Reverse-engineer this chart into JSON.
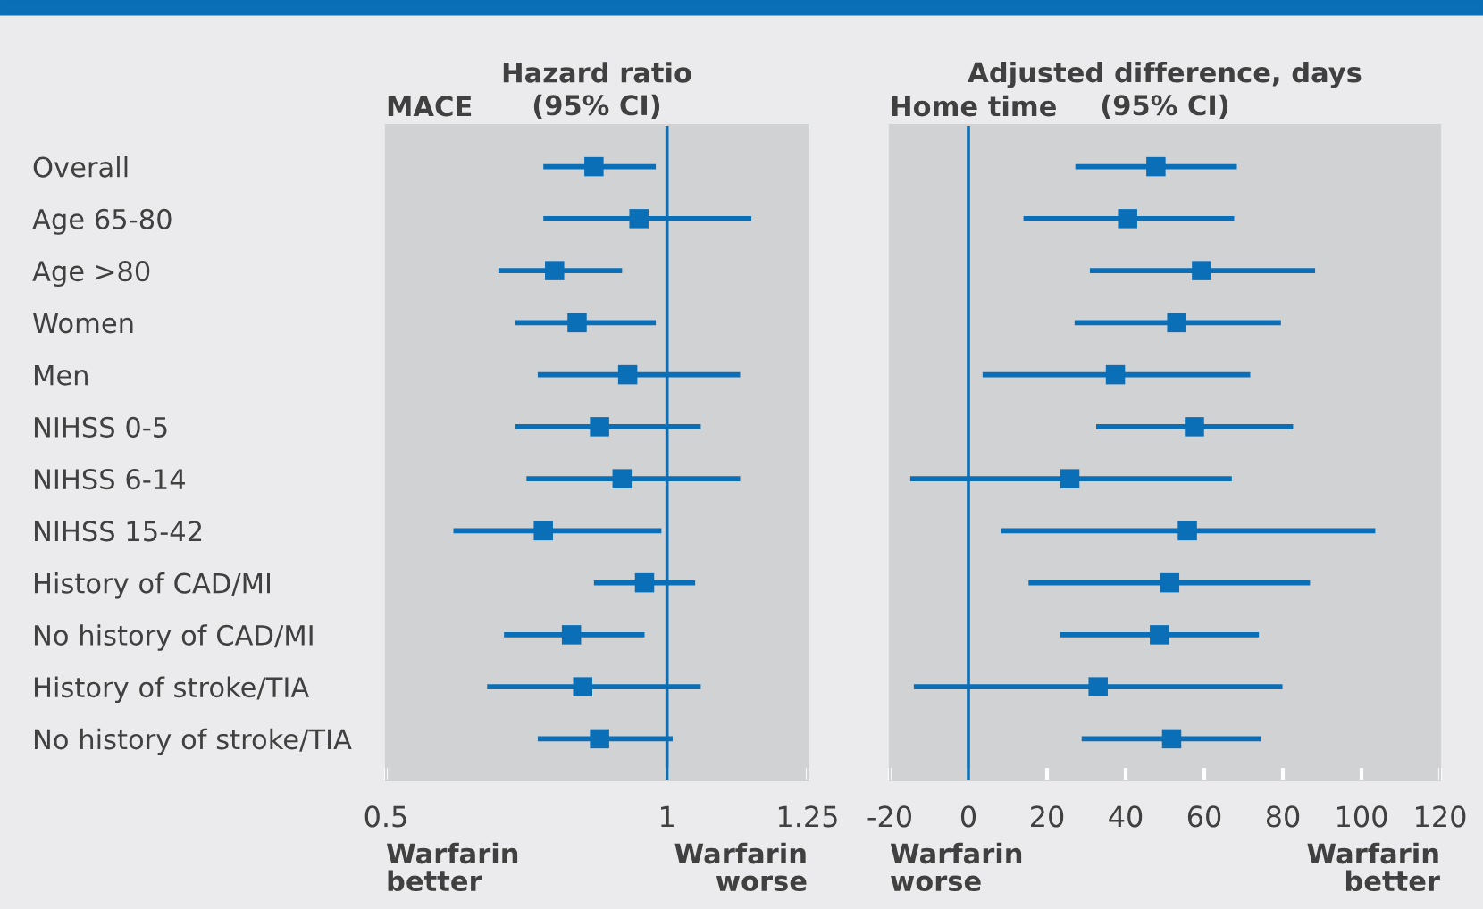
{
  "chart_data": [
    {
      "type": "scatter",
      "orientation": "horizontal",
      "title": "Hazard ratio\n(95% CI)",
      "annotations": [
        "MACE",
        "Warfarin\nbetter",
        "Warfarin\nworse"
      ],
      "categories": [
        "Overall",
        "Age 65-80",
        "Age >80",
        "Women",
        "Men",
        "NIHSS 0-5",
        "NIHSS 6-14",
        "NIHSS 15-42",
        "History of CAD/MI",
        "No history of CAD/MI",
        "History of stroke/TIA",
        "No history of stroke/TIA"
      ],
      "series": [
        {
          "color": "#0a6fb7",
          "values": [
            0.87,
            0.95,
            0.8,
            0.84,
            0.93,
            0.88,
            0.92,
            0.78,
            0.96,
            0.83,
            0.85,
            0.88
          ],
          "errors": [
            [
              0.78,
              0.98
            ],
            [
              0.78,
              1.15
            ],
            [
              0.7,
              0.92
            ],
            [
              0.73,
              0.98
            ],
            [
              0.77,
              1.13
            ],
            [
              0.73,
              1.06
            ],
            [
              0.75,
              1.13
            ],
            [
              0.62,
              0.99
            ],
            [
              0.87,
              1.05
            ],
            [
              0.71,
              0.96
            ],
            [
              0.68,
              1.06
            ],
            [
              0.77,
              1.01
            ]
          ]
        }
      ],
      "xlim": [
        0.5,
        1.25
      ],
      "xticks": [
        0.5,
        1,
        1.25
      ],
      "ref_lines": [
        {
          "axis": "x",
          "value": 1,
          "color": "#0a6fb7"
        }
      ],
      "marker": "square",
      "grid": false,
      "legend": false
    },
    {
      "type": "scatter",
      "orientation": "horizontal",
      "title": "Adjusted difference, days\n(95% CI)",
      "annotations": [
        "Home time",
        "Warfarin\nworse",
        "Warfarin\nbetter"
      ],
      "categories": [
        null,
        null,
        null,
        null,
        null,
        null,
        null,
        null,
        null,
        null,
        null,
        null
      ],
      "series": [
        {
          "color": "#0a6fb7",
          "values": [
            47.7,
            40.5,
            59.3,
            53.0,
            37.4,
            57.5,
            25.8,
            55.7,
            51.2,
            48.6,
            33.0,
            51.7
          ],
          "errors": [
            [
              27.2,
              68.3
            ],
            [
              14.0,
              67.6
            ],
            [
              30.9,
              88.2
            ],
            [
              27.0,
              79.5
            ],
            [
              3.6,
              71.7
            ],
            [
              32.5,
              82.6
            ],
            [
              -14.8,
              67.0
            ],
            [
              8.3,
              103.5
            ],
            [
              15.3,
              86.9
            ],
            [
              23.3,
              73.9
            ],
            [
              -13.9,
              79.9
            ],
            [
              28.8,
              74.5
            ]
          ]
        }
      ],
      "xlim": [
        -20,
        120
      ],
      "xticks": [
        -20,
        0,
        20,
        40,
        60,
        80,
        100,
        120
      ],
      "ref_lines": [
        {
          "axis": "x",
          "value": 0,
          "color": "#0a6fb7"
        }
      ],
      "marker": "square",
      "grid": false,
      "legend": false,
      "tick_labels": "x"
    }
  ]
}
